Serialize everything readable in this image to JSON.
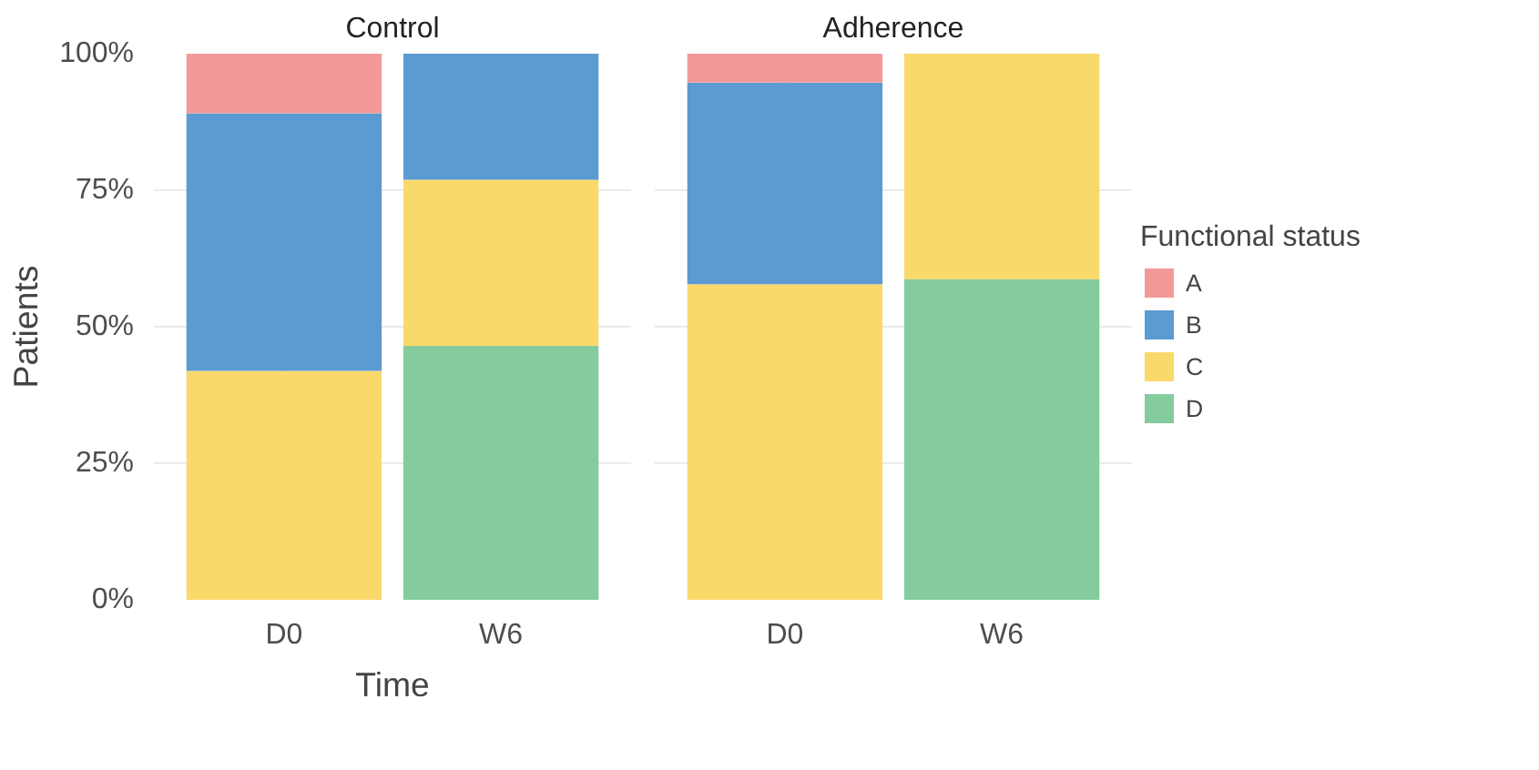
{
  "chart_data": [
    {
      "type": "bar",
      "title": "Control",
      "ylabel": "Patients",
      "xlabel": "Time",
      "categories": [
        "D0",
        "W6"
      ],
      "stacked": true,
      "series": [
        {
          "color": "#84cb9e",
          "values": [
            0,
            46.5
          ]
        },
        {
          "color": "#fad96b",
          "values": [
            41.9,
            30.4
          ]
        },
        {
          "color": "#5b9bd1",
          "values": [
            47.2,
            23.1
          ]
        },
        {
          "color": "#f4999a",
          "values": [
            10.9,
            0
          ]
        }
      ],
      "ylim": [
        0,
        100
      ],
      "yticks": [
        {
          "value": 0,
          "label": "0%"
        },
        {
          "value": 25,
          "label": "25%"
        },
        {
          "value": 50,
          "label": "50%"
        },
        {
          "value": 75,
          "label": "75%"
        },
        {
          "value": 100,
          "label": "100%"
        }
      ],
      "grid": true
    },
    {
      "type": "bar",
      "title": "Adherence",
      "categories": [
        "D0",
        "W6"
      ],
      "stacked": true,
      "series": [
        {
          "name": "D",
          "color": "#84cb9e",
          "values": [
            0,
            58.7
          ]
        },
        {
          "name": "C",
          "color": "#fad96b",
          "values": [
            57.8,
            41.3
          ]
        },
        {
          "name": "B",
          "color": "#5b9bd1",
          "values": [
            36.9,
            0
          ]
        },
        {
          "name": "A",
          "color": "#f4999a",
          "values": [
            5.3,
            0
          ]
        }
      ],
      "ylim": [
        0,
        100
      ],
      "yticks": [
        {
          "value": 0,
          "label": null
        },
        {
          "value": 25,
          "label": null
        },
        {
          "value": 50,
          "label": null
        },
        {
          "value": 75,
          "label": null
        },
        {
          "value": 100,
          "label": null
        }
      ],
      "grid": true,
      "legend": "right",
      "legend_title": "Functional status",
      "tick_labels": "x"
    }
  ]
}
